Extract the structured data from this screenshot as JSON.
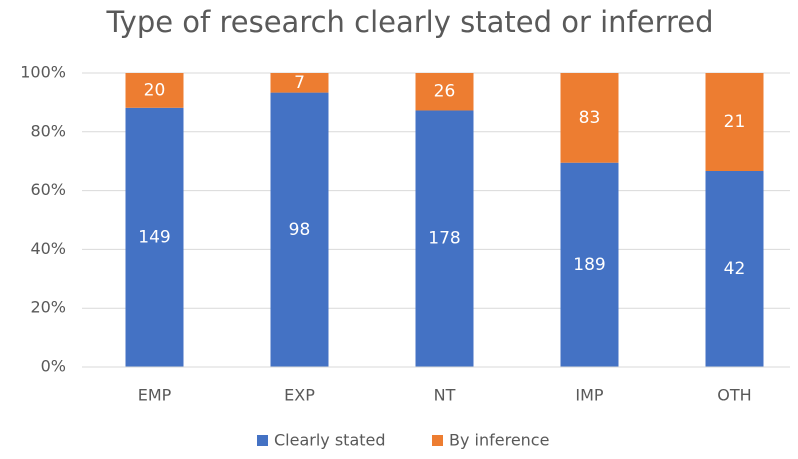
{
  "chart_data": {
    "type": "bar",
    "stacked": "percent",
    "title": "Type of research clearly stated or inferred",
    "categories": [
      "EMP",
      "EXP",
      "NT",
      "IMP",
      "OTH"
    ],
    "series": [
      {
        "name": "Clearly stated",
        "color": "#4472c4",
        "values": [
          149,
          98,
          178,
          189,
          42
        ]
      },
      {
        "name": "By inference",
        "color": "#ed7d31",
        "values": [
          20,
          7,
          26,
          83,
          21
        ]
      }
    ],
    "ylim": [
      0,
      100
    ],
    "yticks": [
      {
        "value": 0,
        "label": "0%"
      },
      {
        "value": 20,
        "label": "20%"
      },
      {
        "value": 40,
        "label": "40%"
      },
      {
        "value": 60,
        "label": "60%"
      },
      {
        "value": 80,
        "label": "80%"
      },
      {
        "value": 100,
        "label": "100%"
      }
    ],
    "grid": true,
    "legend": "bottom"
  }
}
